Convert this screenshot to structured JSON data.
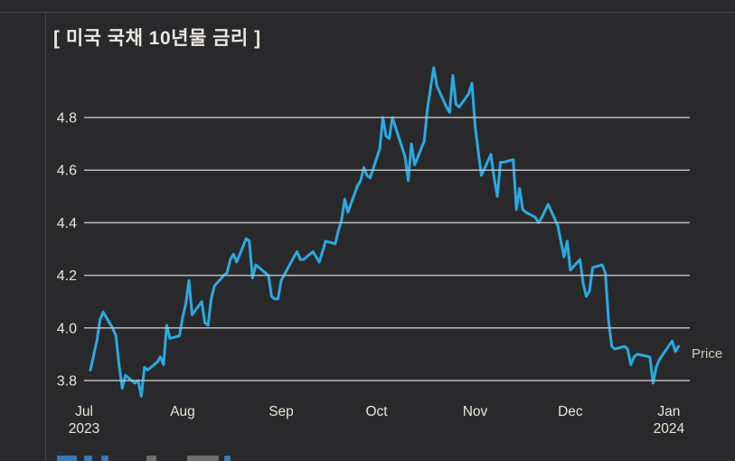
{
  "title": "[ 미국 국채 10년물 금리 ]",
  "price_label": "Price",
  "colors": {
    "background": "#29292b",
    "panel_border": "#4a4a4e",
    "line": "#2ba9e0",
    "grid": "#c2c2c2",
    "axis_label": "#e8e5da",
    "title_text": "#eae8e2",
    "price_label": "#d0cabc",
    "footer_link_blue": "#3a79b6",
    "footer_gray": "#6e6e6e"
  },
  "chart_data": {
    "type": "line",
    "title": "[ 미국 국채 10년물 금리 ]",
    "series": [
      {
        "name": "Price",
        "x_type": "date",
        "points": [
          [
            "2023-07-03",
            3.84
          ],
          [
            "2023-07-05",
            3.95
          ],
          [
            "2023-07-06",
            4.03
          ],
          [
            "2023-07-07",
            4.06
          ],
          [
            "2023-07-10",
            4.0
          ],
          [
            "2023-07-11",
            3.97
          ],
          [
            "2023-07-12",
            3.86
          ],
          [
            "2023-07-13",
            3.77
          ],
          [
            "2023-07-14",
            3.82
          ],
          [
            "2023-07-17",
            3.79
          ],
          [
            "2023-07-18",
            3.8
          ],
          [
            "2023-07-19",
            3.74
          ],
          [
            "2023-07-20",
            3.85
          ],
          [
            "2023-07-21",
            3.84
          ],
          [
            "2023-07-24",
            3.87
          ],
          [
            "2023-07-25",
            3.89
          ],
          [
            "2023-07-26",
            3.86
          ],
          [
            "2023-07-27",
            4.01
          ],
          [
            "2023-07-28",
            3.96
          ],
          [
            "2023-07-31",
            3.97
          ],
          [
            "2023-08-01",
            4.04
          ],
          [
            "2023-08-02",
            4.09
          ],
          [
            "2023-08-03",
            4.18
          ],
          [
            "2023-08-04",
            4.05
          ],
          [
            "2023-08-07",
            4.1
          ],
          [
            "2023-08-08",
            4.02
          ],
          [
            "2023-08-09",
            4.01
          ],
          [
            "2023-08-10",
            4.11
          ],
          [
            "2023-08-11",
            4.16
          ],
          [
            "2023-08-14",
            4.2
          ],
          [
            "2023-08-15",
            4.21
          ],
          [
            "2023-08-16",
            4.26
          ],
          [
            "2023-08-17",
            4.28
          ],
          [
            "2023-08-18",
            4.25
          ],
          [
            "2023-08-21",
            4.34
          ],
          [
            "2023-08-22",
            4.33
          ],
          [
            "2023-08-23",
            4.19
          ],
          [
            "2023-08-24",
            4.24
          ],
          [
            "2023-08-25",
            4.23
          ],
          [
            "2023-08-28",
            4.2
          ],
          [
            "2023-08-29",
            4.12
          ],
          [
            "2023-08-30",
            4.11
          ],
          [
            "2023-08-31",
            4.11
          ],
          [
            "2023-09-01",
            4.18
          ],
          [
            "2023-09-05",
            4.27
          ],
          [
            "2023-09-06",
            4.29
          ],
          [
            "2023-09-07",
            4.26
          ],
          [
            "2023-09-08",
            4.26
          ],
          [
            "2023-09-11",
            4.29
          ],
          [
            "2023-09-12",
            4.27
          ],
          [
            "2023-09-13",
            4.25
          ],
          [
            "2023-09-14",
            4.29
          ],
          [
            "2023-09-15",
            4.33
          ],
          [
            "2023-09-18",
            4.32
          ],
          [
            "2023-09-19",
            4.37
          ],
          [
            "2023-09-20",
            4.41
          ],
          [
            "2023-09-21",
            4.49
          ],
          [
            "2023-09-22",
            4.44
          ],
          [
            "2023-09-25",
            4.54
          ],
          [
            "2023-09-26",
            4.56
          ],
          [
            "2023-09-27",
            4.61
          ],
          [
            "2023-09-28",
            4.58
          ],
          [
            "2023-09-29",
            4.57
          ],
          [
            "2023-10-02",
            4.68
          ],
          [
            "2023-10-03",
            4.8
          ],
          [
            "2023-10-04",
            4.73
          ],
          [
            "2023-10-05",
            4.72
          ],
          [
            "2023-10-06",
            4.8
          ],
          [
            "2023-10-10",
            4.65
          ],
          [
            "2023-10-11",
            4.56
          ],
          [
            "2023-10-12",
            4.7
          ],
          [
            "2023-10-13",
            4.62
          ],
          [
            "2023-10-16",
            4.71
          ],
          [
            "2023-10-17",
            4.83
          ],
          [
            "2023-10-18",
            4.91
          ],
          [
            "2023-10-19",
            4.99
          ],
          [
            "2023-10-20",
            4.92
          ],
          [
            "2023-10-23",
            4.84
          ],
          [
            "2023-10-24",
            4.82
          ],
          [
            "2023-10-25",
            4.96
          ],
          [
            "2023-10-26",
            4.85
          ],
          [
            "2023-10-27",
            4.84
          ],
          [
            "2023-10-30",
            4.89
          ],
          [
            "2023-10-31",
            4.93
          ],
          [
            "2023-11-01",
            4.77
          ],
          [
            "2023-11-02",
            4.67
          ],
          [
            "2023-11-03",
            4.58
          ],
          [
            "2023-11-06",
            4.66
          ],
          [
            "2023-11-07",
            4.57
          ],
          [
            "2023-11-08",
            4.5
          ],
          [
            "2023-11-09",
            4.63
          ],
          [
            "2023-11-10",
            4.63
          ],
          [
            "2023-11-13",
            4.64
          ],
          [
            "2023-11-14",
            4.45
          ],
          [
            "2023-11-15",
            4.53
          ],
          [
            "2023-11-16",
            4.45
          ],
          [
            "2023-11-17",
            4.44
          ],
          [
            "2023-11-20",
            4.42
          ],
          [
            "2023-11-21",
            4.4
          ],
          [
            "2023-11-22",
            4.42
          ],
          [
            "2023-11-24",
            4.47
          ],
          [
            "2023-11-27",
            4.39
          ],
          [
            "2023-11-28",
            4.33
          ],
          [
            "2023-11-29",
            4.27
          ],
          [
            "2023-11-30",
            4.33
          ],
          [
            "2023-12-01",
            4.22
          ],
          [
            "2023-12-04",
            4.26
          ],
          [
            "2023-12-05",
            4.17
          ],
          [
            "2023-12-06",
            4.12
          ],
          [
            "2023-12-07",
            4.14
          ],
          [
            "2023-12-08",
            4.23
          ],
          [
            "2023-12-11",
            4.24
          ],
          [
            "2023-12-12",
            4.21
          ],
          [
            "2023-12-13",
            4.03
          ],
          [
            "2023-12-14",
            3.93
          ],
          [
            "2023-12-15",
            3.92
          ],
          [
            "2023-12-18",
            3.93
          ],
          [
            "2023-12-19",
            3.92
          ],
          [
            "2023-12-20",
            3.86
          ],
          [
            "2023-12-21",
            3.89
          ],
          [
            "2023-12-22",
            3.9
          ],
          [
            "2023-12-26",
            3.89
          ],
          [
            "2023-12-27",
            3.79
          ],
          [
            "2023-12-28",
            3.85
          ],
          [
            "2023-12-29",
            3.88
          ],
          [
            "2024-01-02",
            3.95
          ],
          [
            "2024-01-03",
            3.91
          ],
          [
            "2024-01-04",
            3.93
          ]
        ]
      }
    ],
    "y_ticks": [
      3.8,
      4.0,
      4.2,
      4.4,
      4.6,
      4.8
    ],
    "x_ticks": [
      {
        "date": "2023-07-01",
        "label": "Jul",
        "year": "2023"
      },
      {
        "date": "2023-08-01",
        "label": "Aug",
        "year": ""
      },
      {
        "date": "2023-09-01",
        "label": "Sep",
        "year": ""
      },
      {
        "date": "2023-10-01",
        "label": "Oct",
        "year": ""
      },
      {
        "date": "2023-11-01",
        "label": "Nov",
        "year": ""
      },
      {
        "date": "2023-12-01",
        "label": "Dec",
        "year": ""
      },
      {
        "date": "2024-01-01",
        "label": "Jan",
        "year": "2024"
      }
    ],
    "ylim": [
      3.7,
      5.01
    ],
    "xlabel": "",
    "ylabel": "",
    "grid": true,
    "annotation": "Price label at right end of line"
  },
  "footer": {
    "description": "partially clipped row of footer text/links at bottom edge",
    "fragments": [
      {
        "x": 63,
        "w": 22,
        "color_key": "footer_link_blue"
      },
      {
        "x": 93,
        "w": 9,
        "color_key": "footer_link_blue"
      },
      {
        "x": 112,
        "w": 8,
        "color_key": "footer_link_blue"
      },
      {
        "x": 162,
        "w": 11,
        "color_key": "footer_gray"
      },
      {
        "x": 207,
        "w": 35,
        "color_key": "footer_gray"
      },
      {
        "x": 248,
        "w": 7,
        "color_key": "footer_link_blue"
      }
    ]
  }
}
